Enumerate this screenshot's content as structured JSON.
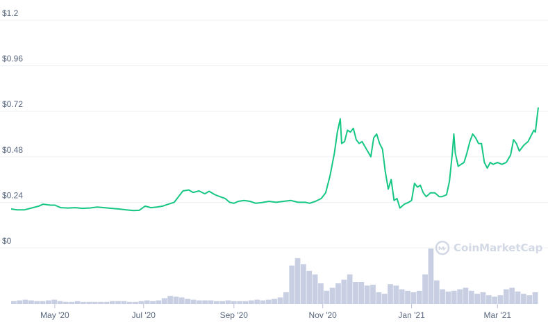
{
  "chart_data": {
    "type": "line",
    "title": "",
    "xlabel": "",
    "ylabel": "",
    "ylim": [
      0,
      1.2
    ],
    "grid": true,
    "y_ticks": [
      "$1.2",
      "$0.96",
      "$0.72",
      "$0.48",
      "$0.24",
      "$0"
    ],
    "x_ticks": [
      "May '20",
      "Jul '20",
      "Sep '20",
      "Nov '20",
      "Jan '21",
      "Mar '21"
    ],
    "x_tick_dates": [
      "2020-05-01",
      "2020-07-01",
      "2020-09-01",
      "2020-11-01",
      "2021-01-01",
      "2021-03-01"
    ],
    "x_range": [
      "2020-04-01",
      "2021-03-29"
    ],
    "series": [
      {
        "color": "#16c784",
        "points": [
          [
            "2020-04-01",
            0.205
          ],
          [
            "2020-04-05",
            0.2
          ],
          [
            "2020-04-10",
            0.2
          ],
          [
            "2020-04-15",
            0.21
          ],
          [
            "2020-04-20",
            0.22
          ],
          [
            "2020-04-23",
            0.23
          ],
          [
            "2020-04-28",
            0.225
          ],
          [
            "2020-05-01",
            0.225
          ],
          [
            "2020-05-05",
            0.212
          ],
          [
            "2020-05-10",
            0.21
          ],
          [
            "2020-05-15",
            0.212
          ],
          [
            "2020-05-20",
            0.208
          ],
          [
            "2020-05-25",
            0.21
          ],
          [
            "2020-05-30",
            0.215
          ],
          [
            "2020-06-04",
            0.212
          ],
          [
            "2020-06-09",
            0.208
          ],
          [
            "2020-06-14",
            0.205
          ],
          [
            "2020-06-19",
            0.2
          ],
          [
            "2020-06-24",
            0.197
          ],
          [
            "2020-06-28",
            0.198
          ],
          [
            "2020-07-02",
            0.22
          ],
          [
            "2020-07-06",
            0.212
          ],
          [
            "2020-07-10",
            0.215
          ],
          [
            "2020-07-14",
            0.22
          ],
          [
            "2020-07-18",
            0.23
          ],
          [
            "2020-07-22",
            0.24
          ],
          [
            "2020-07-25",
            0.27
          ],
          [
            "2020-07-28",
            0.3
          ],
          [
            "2020-08-01",
            0.305
          ],
          [
            "2020-08-04",
            0.292
          ],
          [
            "2020-08-08",
            0.3
          ],
          [
            "2020-08-12",
            0.285
          ],
          [
            "2020-08-15",
            0.298
          ],
          [
            "2020-08-19",
            0.28
          ],
          [
            "2020-08-23",
            0.268
          ],
          [
            "2020-08-26",
            0.26
          ],
          [
            "2020-08-29",
            0.24
          ],
          [
            "2020-09-01",
            0.235
          ],
          [
            "2020-09-04",
            0.245
          ],
          [
            "2020-09-08",
            0.25
          ],
          [
            "2020-09-12",
            0.245
          ],
          [
            "2020-09-16",
            0.235
          ],
          [
            "2020-09-20",
            0.238
          ],
          [
            "2020-09-25",
            0.245
          ],
          [
            "2020-09-30",
            0.24
          ],
          [
            "2020-10-05",
            0.245
          ],
          [
            "2020-10-10",
            0.25
          ],
          [
            "2020-10-15",
            0.24
          ],
          [
            "2020-10-20",
            0.24
          ],
          [
            "2020-10-23",
            0.235
          ],
          [
            "2020-10-27",
            0.245
          ],
          [
            "2020-10-31",
            0.26
          ],
          [
            "2020-11-03",
            0.29
          ],
          [
            "2020-11-06",
            0.38
          ],
          [
            "2020-11-09",
            0.5
          ],
          [
            "2020-11-11",
            0.61
          ],
          [
            "2020-11-13",
            0.68
          ],
          [
            "2020-11-14",
            0.55
          ],
          [
            "2020-11-16",
            0.56
          ],
          [
            "2020-11-18",
            0.62
          ],
          [
            "2020-11-20",
            0.61
          ],
          [
            "2020-11-22",
            0.63
          ],
          [
            "2020-11-24",
            0.57
          ],
          [
            "2020-11-26",
            0.55
          ],
          [
            "2020-11-28",
            0.56
          ],
          [
            "2020-12-01",
            0.52
          ],
          [
            "2020-12-04",
            0.48
          ],
          [
            "2020-12-06",
            0.58
          ],
          [
            "2020-12-08",
            0.6
          ],
          [
            "2020-12-10",
            0.55
          ],
          [
            "2020-12-12",
            0.52
          ],
          [
            "2020-12-14",
            0.4
          ],
          [
            "2020-12-16",
            0.31
          ],
          [
            "2020-12-18",
            0.36
          ],
          [
            "2020-12-20",
            0.25
          ],
          [
            "2020-12-22",
            0.26
          ],
          [
            "2020-12-24",
            0.21
          ],
          [
            "2020-12-27",
            0.23
          ],
          [
            "2020-12-30",
            0.24
          ],
          [
            "2021-01-01",
            0.25
          ],
          [
            "2021-01-03",
            0.34
          ],
          [
            "2021-01-05",
            0.32
          ],
          [
            "2021-01-07",
            0.33
          ],
          [
            "2021-01-09",
            0.29
          ],
          [
            "2021-01-11",
            0.27
          ],
          [
            "2021-01-14",
            0.29
          ],
          [
            "2021-01-17",
            0.29
          ],
          [
            "2021-01-20",
            0.27
          ],
          [
            "2021-01-22",
            0.27
          ],
          [
            "2021-01-25",
            0.28
          ],
          [
            "2021-01-27",
            0.35
          ],
          [
            "2021-01-29",
            0.5
          ],
          [
            "2021-01-30",
            0.6
          ],
          [
            "2021-01-31",
            0.5
          ],
          [
            "2021-02-02",
            0.43
          ],
          [
            "2021-02-04",
            0.44
          ],
          [
            "2021-02-06",
            0.45
          ],
          [
            "2021-02-08",
            0.5
          ],
          [
            "2021-02-10",
            0.56
          ],
          [
            "2021-02-12",
            0.6
          ],
          [
            "2021-02-14",
            0.58
          ],
          [
            "2021-02-16",
            0.55
          ],
          [
            "2021-02-18",
            0.55
          ],
          [
            "2021-02-20",
            0.45
          ],
          [
            "2021-02-22",
            0.42
          ],
          [
            "2021-02-24",
            0.45
          ],
          [
            "2021-02-26",
            0.44
          ],
          [
            "2021-03-01",
            0.45
          ],
          [
            "2021-03-04",
            0.44
          ],
          [
            "2021-03-07",
            0.45
          ],
          [
            "2021-03-10",
            0.49
          ],
          [
            "2021-03-12",
            0.57
          ],
          [
            "2021-03-14",
            0.55
          ],
          [
            "2021-03-16",
            0.51
          ],
          [
            "2021-03-19",
            0.54
          ],
          [
            "2021-03-22",
            0.56
          ],
          [
            "2021-03-24",
            0.59
          ],
          [
            "2021-03-26",
            0.62
          ],
          [
            "2021-03-27",
            0.61
          ],
          [
            "2021-03-29",
            0.74
          ]
        ]
      }
    ],
    "volume": {
      "color": "#c8cfe3",
      "values": [
        0.04,
        0.05,
        0.06,
        0.05,
        0.04,
        0.04,
        0.05,
        0.06,
        0.04,
        0.03,
        0.03,
        0.04,
        0.03,
        0.03,
        0.03,
        0.03,
        0.03,
        0.04,
        0.04,
        0.04,
        0.03,
        0.03,
        0.04,
        0.05,
        0.04,
        0.05,
        0.08,
        0.11,
        0.1,
        0.09,
        0.07,
        0.06,
        0.05,
        0.05,
        0.05,
        0.04,
        0.04,
        0.05,
        0.04,
        0.04,
        0.04,
        0.05,
        0.06,
        0.05,
        0.06,
        0.07,
        0.09,
        0.16,
        0.52,
        0.62,
        0.54,
        0.45,
        0.4,
        0.28,
        0.18,
        0.22,
        0.28,
        0.33,
        0.4,
        0.3,
        0.3,
        0.25,
        0.26,
        0.16,
        0.14,
        0.27,
        0.25,
        0.2,
        0.18,
        0.16,
        0.18,
        0.4,
        0.75,
        0.32,
        0.2,
        0.17,
        0.18,
        0.2,
        0.22,
        0.18,
        0.14,
        0.16,
        0.12,
        0.1,
        0.12,
        0.2,
        0.22,
        0.17,
        0.14,
        0.12,
        0.16
      ]
    }
  },
  "watermark": {
    "text": "CoinMarketCap",
    "icon": "coinmarketcap-logo-icon",
    "color": "#d3d9e4"
  }
}
